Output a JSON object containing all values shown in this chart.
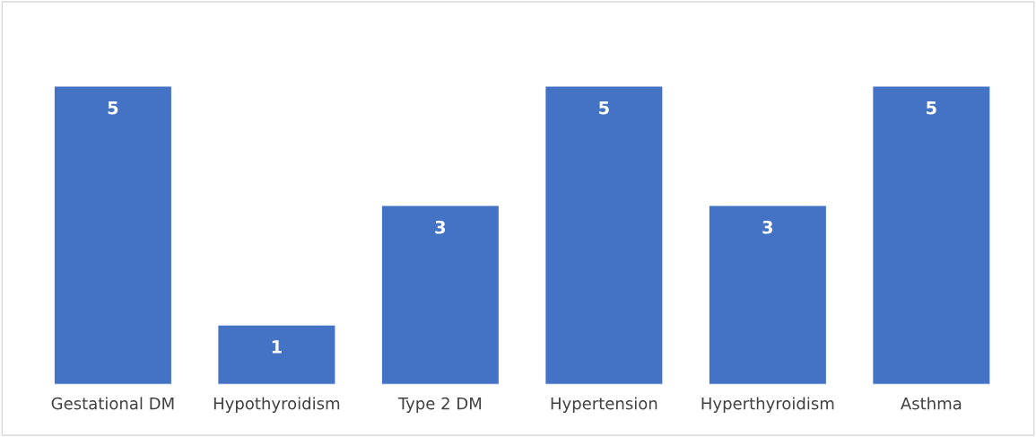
{
  "chart_data": {
    "type": "bar",
    "categories": [
      "Gestational DM",
      "Hypothyroidism",
      "Type 2 DM",
      "Hypertension",
      "Hyperthyroidism",
      "Asthma"
    ],
    "values": [
      5,
      1,
      3,
      5,
      3,
      5
    ],
    "color": "#4472c4",
    "data_labels": true,
    "grid": false,
    "legend": false
  }
}
